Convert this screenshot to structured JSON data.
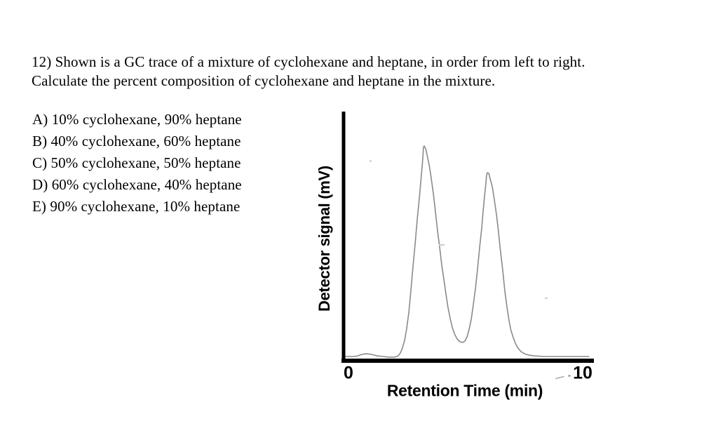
{
  "question": {
    "line1": "12) Shown is a GC trace of a mixture of cyclohexane and heptane, in order from left to right.",
    "line2": "Calculate the percent composition of cyclohexane and heptane in the mixture."
  },
  "options": [
    "A) 10% cyclohexane, 90% heptane",
    "B) 40% cyclohexane, 60% heptane",
    "C) 50% cyclohexane, 50% heptane",
    "D) 60% cyclohexane, 40% heptane",
    "E) 90% cyclohexane, 10% heptane"
  ],
  "chart_data": {
    "type": "line",
    "title": "",
    "xlabel": "Retention Time (min)",
    "ylabel": "Detector signal (mV)",
    "x_tick_labels": [
      "0",
      "10"
    ],
    "xlim": [
      0,
      10
    ],
    "grid": false,
    "legend": false,
    "line_color": "#8a8a8a",
    "axis_color": "#000000",
    "peaks": [
      {
        "compound": "cyclohexane",
        "retention_time_min": 3.2,
        "relative_peak_height": 1.0
      },
      {
        "compound": "heptane",
        "retention_time_min": 5.7,
        "relative_peak_height": 0.87
      }
    ],
    "series": [
      {
        "name": "detector-signal",
        "points": [
          [
            0.06,
            0
          ],
          [
            0.42,
            0
          ],
          [
            0.56,
            0.003
          ],
          [
            0.73,
            0.01
          ],
          [
            0.92,
            0.013
          ],
          [
            1.12,
            0.01
          ],
          [
            1.34,
            0.003
          ],
          [
            1.57,
            0
          ],
          [
            1.82,
            -0.003
          ],
          [
            2.04,
            -0.003
          ],
          [
            2.18,
            0.003
          ],
          [
            2.27,
            0.017
          ],
          [
            2.35,
            0.04
          ],
          [
            2.44,
            0.077
          ],
          [
            2.52,
            0.133
          ],
          [
            2.61,
            0.213
          ],
          [
            2.69,
            0.313
          ],
          [
            2.77,
            0.423
          ],
          [
            2.86,
            0.537
          ],
          [
            2.94,
            0.65
          ],
          [
            3.03,
            0.757
          ],
          [
            3.08,
            0.827
          ],
          [
            3.14,
            0.903
          ],
          [
            3.17,
            0.953
          ],
          [
            3.19,
            0.993
          ],
          [
            3.22,
            1.0
          ],
          [
            3.28,
            0.987
          ],
          [
            3.33,
            0.96
          ],
          [
            3.42,
            0.91
          ],
          [
            3.5,
            0.847
          ],
          [
            3.59,
            0.77
          ],
          [
            3.67,
            0.687
          ],
          [
            3.75,
            0.6
          ],
          [
            3.84,
            0.517
          ],
          [
            3.92,
            0.437
          ],
          [
            4.01,
            0.363
          ],
          [
            4.09,
            0.297
          ],
          [
            4.17,
            0.233
          ],
          [
            4.26,
            0.18
          ],
          [
            4.34,
            0.14
          ],
          [
            4.43,
            0.107
          ],
          [
            4.54,
            0.083
          ],
          [
            4.65,
            0.07
          ],
          [
            4.76,
            0.067
          ],
          [
            4.85,
            0.073
          ],
          [
            4.93,
            0.093
          ],
          [
            5.01,
            0.127
          ],
          [
            5.1,
            0.177
          ],
          [
            5.18,
            0.243
          ],
          [
            5.27,
            0.323
          ],
          [
            5.35,
            0.413
          ],
          [
            5.43,
            0.513
          ],
          [
            5.52,
            0.613
          ],
          [
            5.57,
            0.683
          ],
          [
            5.63,
            0.76
          ],
          [
            5.69,
            0.827
          ],
          [
            5.71,
            0.857
          ],
          [
            5.74,
            0.873
          ],
          [
            5.8,
            0.87
          ],
          [
            5.85,
            0.847
          ],
          [
            5.94,
            0.807
          ],
          [
            6.02,
            0.747
          ],
          [
            6.11,
            0.673
          ],
          [
            6.19,
            0.59
          ],
          [
            6.27,
            0.5
          ],
          [
            6.36,
            0.407
          ],
          [
            6.44,
            0.313
          ],
          [
            6.53,
            0.233
          ],
          [
            6.61,
            0.17
          ],
          [
            6.69,
            0.123
          ],
          [
            6.78,
            0.09
          ],
          [
            6.86,
            0.063
          ],
          [
            6.97,
            0.04
          ],
          [
            7.09,
            0.023
          ],
          [
            7.23,
            0.013
          ],
          [
            7.39,
            0.007
          ],
          [
            7.62,
            0.003
          ],
          [
            7.98,
            0
          ],
          [
            8.68,
            0
          ],
          [
            9.24,
            0
          ],
          [
            9.8,
            0
          ]
        ]
      }
    ]
  }
}
